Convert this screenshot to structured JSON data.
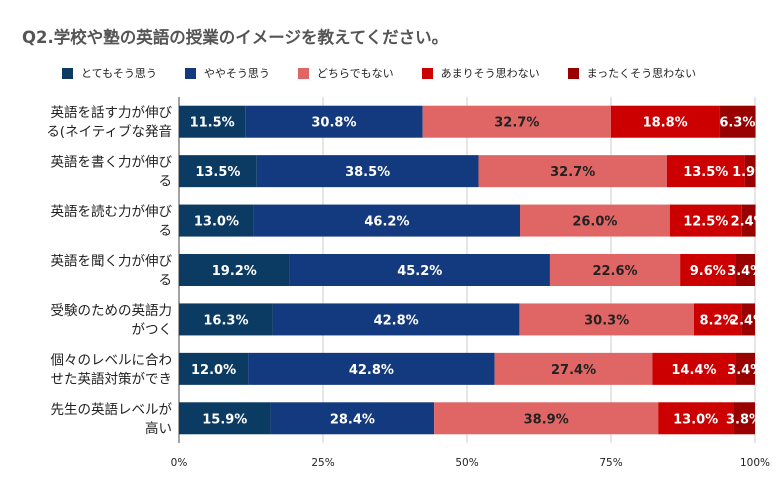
{
  "chart_data": {
    "type": "bar",
    "orientation": "horizontal",
    "stacked": true,
    "title": "Q2.学校や塾の英語の授業のイメージを教えてください。",
    "categories": [
      [
        "英語を話す力が伸び",
        "る(ネイティブな発音"
      ],
      [
        "英語を書く力が伸び",
        "る"
      ],
      [
        "英語を読む力が伸び",
        "る"
      ],
      [
        "英語を聞く力が伸び",
        "る"
      ],
      [
        "受験のための英語力",
        "がつく"
      ],
      [
        "個々のレベルに合わ",
        "せた英語対策ができ"
      ],
      [
        "先生の英語レベルが",
        "高い"
      ]
    ],
    "series": [
      {
        "name": "とてもそう思う",
        "color": "#0b3a62",
        "text_color": "#ffffff",
        "values": [
          11.5,
          13.5,
          13.0,
          19.2,
          16.3,
          12.0,
          15.9
        ],
        "labels": [
          "11.5%",
          "13.5%",
          "13.0%",
          "19.2%",
          "16.3%",
          "12.0%",
          "15.9%"
        ]
      },
      {
        "name": "ややそう思う",
        "color": "#13397e",
        "text_color": "#ffffff",
        "values": [
          30.8,
          38.5,
          46.2,
          45.2,
          42.8,
          42.8,
          28.4
        ],
        "labels": [
          "30.8%",
          "38.5%",
          "46.2%",
          "45.2%",
          "42.8%",
          "42.8%",
          "28.4%"
        ]
      },
      {
        "name": "どちらでもない",
        "color": "#e06666",
        "text_color": "#222222",
        "values": [
          32.7,
          32.7,
          26.0,
          22.6,
          30.3,
          27.4,
          38.9
        ],
        "labels": [
          "32.7%",
          "32.7%",
          "26.0%",
          "22.6%",
          "30.3%",
          "27.4%",
          "38.9%"
        ]
      },
      {
        "name": "あまりそう思わない",
        "color": "#cc0000",
        "text_color": "#ffffff",
        "values": [
          18.8,
          13.5,
          12.5,
          9.6,
          8.2,
          14.4,
          13.0
        ],
        "labels": [
          "18.8%",
          "13.5%",
          "12.5%",
          "9.6%",
          "8.2%",
          "14.4%",
          "13.0%"
        ]
      },
      {
        "name": "まったくそう思わない",
        "color": "#990000",
        "text_color": "#ffffff",
        "values": [
          6.3,
          1.9,
          2.4,
          3.4,
          2.4,
          3.4,
          3.8
        ],
        "labels": [
          "6.3%",
          "1.9%",
          "2.4%",
          "3.4%",
          "2.4%",
          "3.4%",
          "3.8%"
        ]
      }
    ],
    "xlim": [
      0,
      100
    ],
    "xticks": [
      0,
      25,
      50,
      75,
      100
    ],
    "xtick_labels": [
      "0%",
      "25%",
      "50%",
      "75%",
      "100%"
    ],
    "grid": true,
    "legend_position": "top"
  }
}
